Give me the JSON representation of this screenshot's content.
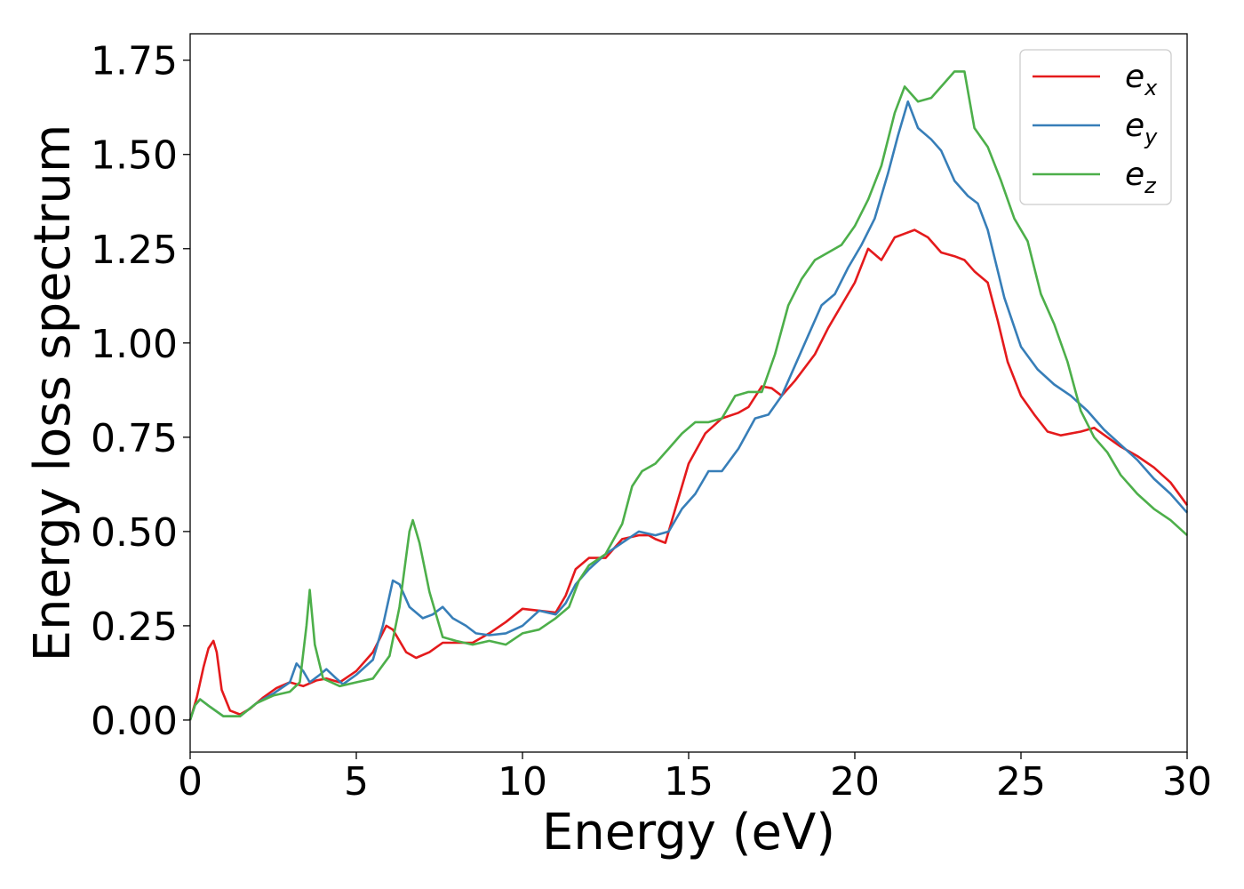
{
  "chart_data": {
    "type": "line",
    "xlabel": "Energy (eV)",
    "ylabel": "Energy loss spectrum",
    "xlim": [
      0,
      30
    ],
    "ylim": [
      -0.085,
      1.82
    ],
    "xticks": [
      0,
      5,
      10,
      15,
      20,
      25,
      30
    ],
    "xtick_labels": [
      "0",
      "5",
      "10",
      "15",
      "20",
      "25",
      "30"
    ],
    "yticks": [
      0.0,
      0.25,
      0.5,
      0.75,
      1.0,
      1.25,
      1.5,
      1.75
    ],
    "ytick_labels": [
      "0.00",
      "0.25",
      "0.50",
      "0.75",
      "1.00",
      "1.25",
      "1.50",
      "1.75"
    ],
    "grid": false,
    "legend_position": "top-right",
    "series": [
      {
        "name": "e",
        "subscript": "x",
        "color": "#e41a1c",
        "points": [
          [
            0,
            0
          ],
          [
            0.2,
            0.06
          ],
          [
            0.4,
            0.14
          ],
          [
            0.55,
            0.19
          ],
          [
            0.7,
            0.21
          ],
          [
            0.8,
            0.18
          ],
          [
            0.95,
            0.08
          ],
          [
            1.2,
            0.025
          ],
          [
            1.5,
            0.015
          ],
          [
            1.8,
            0.03
          ],
          [
            2.2,
            0.06
          ],
          [
            2.6,
            0.085
          ],
          [
            3.0,
            0.1
          ],
          [
            3.4,
            0.09
          ],
          [
            3.8,
            0.105
          ],
          [
            4.1,
            0.11
          ],
          [
            4.5,
            0.1
          ],
          [
            5.0,
            0.13
          ],
          [
            5.5,
            0.18
          ],
          [
            5.9,
            0.25
          ],
          [
            6.1,
            0.24
          ],
          [
            6.5,
            0.18
          ],
          [
            6.8,
            0.165
          ],
          [
            7.2,
            0.18
          ],
          [
            7.6,
            0.205
          ],
          [
            8.0,
            0.205
          ],
          [
            8.5,
            0.205
          ],
          [
            9.0,
            0.23
          ],
          [
            9.5,
            0.26
          ],
          [
            10.0,
            0.295
          ],
          [
            10.5,
            0.29
          ],
          [
            11.0,
            0.285
          ],
          [
            11.3,
            0.33
          ],
          [
            11.6,
            0.4
          ],
          [
            12.0,
            0.43
          ],
          [
            12.5,
            0.43
          ],
          [
            13.0,
            0.48
          ],
          [
            13.5,
            0.49
          ],
          [
            13.8,
            0.49
          ],
          [
            14.0,
            0.48
          ],
          [
            14.3,
            0.47
          ],
          [
            14.6,
            0.56
          ],
          [
            15.0,
            0.68
          ],
          [
            15.5,
            0.76
          ],
          [
            16.0,
            0.8
          ],
          [
            16.5,
            0.815
          ],
          [
            16.8,
            0.83
          ],
          [
            17.2,
            0.885
          ],
          [
            17.5,
            0.88
          ],
          [
            17.8,
            0.86
          ],
          [
            18.2,
            0.9
          ],
          [
            18.8,
            0.97
          ],
          [
            19.2,
            1.04
          ],
          [
            19.6,
            1.1
          ],
          [
            20.0,
            1.16
          ],
          [
            20.4,
            1.25
          ],
          [
            20.8,
            1.22
          ],
          [
            21.2,
            1.28
          ],
          [
            21.5,
            1.29
          ],
          [
            21.8,
            1.3
          ],
          [
            22.2,
            1.28
          ],
          [
            22.6,
            1.24
          ],
          [
            23.0,
            1.23
          ],
          [
            23.3,
            1.22
          ],
          [
            23.6,
            1.19
          ],
          [
            24.0,
            1.16
          ],
          [
            24.3,
            1.06
          ],
          [
            24.6,
            0.95
          ],
          [
            25.0,
            0.86
          ],
          [
            25.4,
            0.81
          ],
          [
            25.8,
            0.765
          ],
          [
            26.2,
            0.755
          ],
          [
            26.8,
            0.765
          ],
          [
            27.2,
            0.775
          ],
          [
            27.6,
            0.75
          ],
          [
            28.0,
            0.725
          ],
          [
            28.5,
            0.7
          ],
          [
            29.0,
            0.67
          ],
          [
            29.5,
            0.63
          ],
          [
            30.0,
            0.57
          ]
        ]
      },
      {
        "name": "e",
        "subscript": "y",
        "color": "#377eb8",
        "points": [
          [
            0,
            0
          ],
          [
            0.15,
            0.04
          ],
          [
            0.3,
            0.055
          ],
          [
            0.6,
            0.035
          ],
          [
            1.0,
            0.01
          ],
          [
            1.5,
            0.01
          ],
          [
            2.0,
            0.045
          ],
          [
            2.5,
            0.07
          ],
          [
            3.0,
            0.1
          ],
          [
            3.2,
            0.15
          ],
          [
            3.4,
            0.13
          ],
          [
            3.6,
            0.1
          ],
          [
            3.9,
            0.12
          ],
          [
            4.1,
            0.135
          ],
          [
            4.4,
            0.11
          ],
          [
            4.6,
            0.095
          ],
          [
            5.0,
            0.12
          ],
          [
            5.5,
            0.16
          ],
          [
            5.8,
            0.25
          ],
          [
            6.1,
            0.37
          ],
          [
            6.3,
            0.36
          ],
          [
            6.6,
            0.3
          ],
          [
            7.0,
            0.27
          ],
          [
            7.3,
            0.28
          ],
          [
            7.6,
            0.3
          ],
          [
            7.9,
            0.27
          ],
          [
            8.3,
            0.25
          ],
          [
            8.6,
            0.23
          ],
          [
            9.0,
            0.225
          ],
          [
            9.5,
            0.23
          ],
          [
            10.0,
            0.25
          ],
          [
            10.5,
            0.29
          ],
          [
            11.0,
            0.28
          ],
          [
            11.3,
            0.31
          ],
          [
            11.6,
            0.36
          ],
          [
            12.0,
            0.4
          ],
          [
            12.5,
            0.44
          ],
          [
            13.0,
            0.47
          ],
          [
            13.5,
            0.5
          ],
          [
            14.0,
            0.49
          ],
          [
            14.4,
            0.5
          ],
          [
            14.8,
            0.56
          ],
          [
            15.2,
            0.6
          ],
          [
            15.6,
            0.66
          ],
          [
            16.0,
            0.66
          ],
          [
            16.5,
            0.72
          ],
          [
            17.0,
            0.8
          ],
          [
            17.4,
            0.81
          ],
          [
            17.8,
            0.86
          ],
          [
            18.2,
            0.94
          ],
          [
            18.6,
            1.02
          ],
          [
            19.0,
            1.1
          ],
          [
            19.4,
            1.13
          ],
          [
            19.8,
            1.2
          ],
          [
            20.2,
            1.26
          ],
          [
            20.6,
            1.33
          ],
          [
            21.0,
            1.45
          ],
          [
            21.3,
            1.55
          ],
          [
            21.6,
            1.64
          ],
          [
            21.9,
            1.57
          ],
          [
            22.3,
            1.54
          ],
          [
            22.6,
            1.51
          ],
          [
            23.0,
            1.43
          ],
          [
            23.4,
            1.39
          ],
          [
            23.7,
            1.37
          ],
          [
            24.0,
            1.3
          ],
          [
            24.5,
            1.12
          ],
          [
            25.0,
            0.99
          ],
          [
            25.5,
            0.93
          ],
          [
            26.0,
            0.89
          ],
          [
            26.5,
            0.86
          ],
          [
            27.0,
            0.82
          ],
          [
            27.5,
            0.77
          ],
          [
            28.0,
            0.73
          ],
          [
            28.5,
            0.69
          ],
          [
            29.0,
            0.64
          ],
          [
            29.5,
            0.6
          ],
          [
            30.0,
            0.55
          ]
        ]
      },
      {
        "name": "e",
        "subscript": "z",
        "color": "#4daf4a",
        "points": [
          [
            0,
            0
          ],
          [
            0.15,
            0.04
          ],
          [
            0.3,
            0.055
          ],
          [
            0.6,
            0.035
          ],
          [
            1.0,
            0.01
          ],
          [
            1.5,
            0.01
          ],
          [
            2.0,
            0.045
          ],
          [
            2.5,
            0.065
          ],
          [
            3.0,
            0.075
          ],
          [
            3.3,
            0.1
          ],
          [
            3.5,
            0.25
          ],
          [
            3.6,
            0.345
          ],
          [
            3.75,
            0.2
          ],
          [
            4.0,
            0.11
          ],
          [
            4.5,
            0.09
          ],
          [
            5.0,
            0.1
          ],
          [
            5.5,
            0.11
          ],
          [
            6.0,
            0.17
          ],
          [
            6.3,
            0.3
          ],
          [
            6.6,
            0.5
          ],
          [
            6.7,
            0.53
          ],
          [
            6.9,
            0.47
          ],
          [
            7.2,
            0.34
          ],
          [
            7.6,
            0.22
          ],
          [
            8.0,
            0.21
          ],
          [
            8.5,
            0.2
          ],
          [
            9.0,
            0.21
          ],
          [
            9.5,
            0.2
          ],
          [
            10.0,
            0.23
          ],
          [
            10.5,
            0.24
          ],
          [
            11.0,
            0.27
          ],
          [
            11.4,
            0.3
          ],
          [
            11.7,
            0.37
          ],
          [
            12.0,
            0.41
          ],
          [
            12.5,
            0.44
          ],
          [
            13.0,
            0.52
          ],
          [
            13.3,
            0.62
          ],
          [
            13.6,
            0.66
          ],
          [
            14.0,
            0.68
          ],
          [
            14.4,
            0.72
          ],
          [
            14.8,
            0.76
          ],
          [
            15.2,
            0.79
          ],
          [
            15.6,
            0.79
          ],
          [
            16.0,
            0.8
          ],
          [
            16.4,
            0.86
          ],
          [
            16.8,
            0.87
          ],
          [
            17.2,
            0.87
          ],
          [
            17.6,
            0.97
          ],
          [
            18.0,
            1.1
          ],
          [
            18.4,
            1.17
          ],
          [
            18.8,
            1.22
          ],
          [
            19.2,
            1.24
          ],
          [
            19.6,
            1.26
          ],
          [
            20.0,
            1.31
          ],
          [
            20.4,
            1.38
          ],
          [
            20.8,
            1.47
          ],
          [
            21.2,
            1.61
          ],
          [
            21.5,
            1.68
          ],
          [
            21.9,
            1.64
          ],
          [
            22.3,
            1.65
          ],
          [
            22.7,
            1.69
          ],
          [
            23.0,
            1.72
          ],
          [
            23.3,
            1.72
          ],
          [
            23.6,
            1.57
          ],
          [
            24.0,
            1.52
          ],
          [
            24.4,
            1.43
          ],
          [
            24.8,
            1.33
          ],
          [
            25.2,
            1.27
          ],
          [
            25.6,
            1.13
          ],
          [
            26.0,
            1.05
          ],
          [
            26.4,
            0.95
          ],
          [
            26.8,
            0.82
          ],
          [
            27.2,
            0.75
          ],
          [
            27.6,
            0.71
          ],
          [
            28.0,
            0.65
          ],
          [
            28.5,
            0.6
          ],
          [
            29.0,
            0.56
          ],
          [
            29.5,
            0.53
          ],
          [
            30.0,
            0.49
          ]
        ]
      }
    ]
  }
}
